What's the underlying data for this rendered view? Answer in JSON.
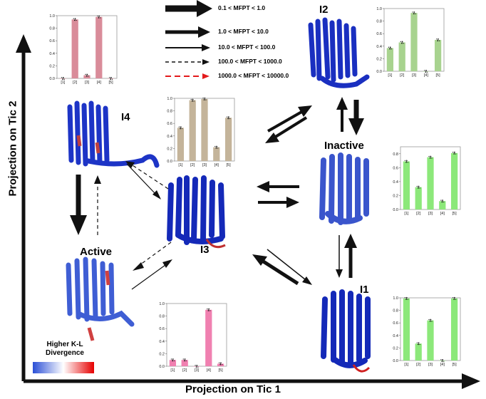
{
  "axes": {
    "x_label": "Projection on Tic 1",
    "y_label": "Projection on Tic 2"
  },
  "states": {
    "i2": "I2",
    "i4": "I4",
    "inactive": "Inactive",
    "i3": "I3",
    "active": "Active",
    "i1": "I1"
  },
  "legend": [
    {
      "label": "0.1 < MFPT < 1.0",
      "style": "thickest",
      "color": "#000000"
    },
    {
      "label": "1.0 < MFPT < 10.0",
      "style": "thick",
      "color": "#000000"
    },
    {
      "label": "10.0 < MFPT < 100.0",
      "style": "thin",
      "color": "#000000"
    },
    {
      "label": "100.0 < MFPT < 1000.0",
      "style": "dashed",
      "color": "#000000"
    },
    {
      "label": "1000.0 < MFPT < 10000.0",
      "style": "dashed",
      "color": "#e31a1c"
    }
  ],
  "kl_legend": {
    "line1": "Higher K-L",
    "line2": "Divergence",
    "gradient": [
      "#2b4fd6",
      "#ffffff",
      "#e60000"
    ]
  },
  "chart_data": [
    {
      "id": "I4",
      "type": "bar",
      "categories": [
        "[1]",
        "[2]",
        "[3]",
        "[4]",
        "[5]"
      ],
      "values": [
        0.0,
        0.94,
        0.05,
        0.98,
        0.0
      ],
      "ylim": [
        0,
        1.0
      ],
      "yticks": [
        "0.0",
        "0.2",
        "0.4",
        "0.6",
        "0.8",
        "1.0"
      ],
      "color": "#d98c9a"
    },
    {
      "id": "I3",
      "type": "bar",
      "categories": [
        "[1]",
        "[2]",
        "[3]",
        "[4]",
        "[5]"
      ],
      "values": [
        0.53,
        0.97,
        0.99,
        0.22,
        0.69
      ],
      "ylim": [
        0,
        1.0
      ],
      "yticks": [
        "0.0",
        "0.2",
        "0.4",
        "0.6",
        "0.8",
        "1.0"
      ],
      "color": "#c4b49a"
    },
    {
      "id": "I2",
      "type": "bar",
      "categories": [
        "[1]",
        "[2]",
        "[3]",
        "[4]",
        "[5]"
      ],
      "values": [
        0.37,
        0.46,
        0.93,
        0.0,
        0.5
      ],
      "ylim": [
        0,
        1.0
      ],
      "yticks": [
        "0.0",
        "0.2",
        "0.4",
        "0.6",
        "0.8",
        "1.0"
      ],
      "color": "#a8d38f"
    },
    {
      "id": "Inactive",
      "type": "bar",
      "categories": [
        "[1]",
        "[2]",
        "[3]",
        "[4]",
        "[5]"
      ],
      "values": [
        0.69,
        0.32,
        0.75,
        0.12,
        0.81
      ],
      "ylim": [
        0,
        0.9
      ],
      "yticks": [
        "0.0",
        "0.2",
        "0.4",
        "0.6",
        "0.8"
      ],
      "color": "#8ce87a"
    },
    {
      "id": "I1",
      "type": "bar",
      "categories": [
        "[1]",
        "[2]",
        "[3]",
        "[4]",
        "[5]"
      ],
      "values": [
        0.99,
        0.27,
        0.64,
        0.0,
        0.99
      ],
      "ylim": [
        0,
        1.0
      ],
      "yticks": [
        "0.0",
        "0.2",
        "0.4",
        "0.6",
        "0.8",
        "1.0"
      ],
      "color": "#8ce87a"
    },
    {
      "id": "Active",
      "type": "bar",
      "categories": [
        "[1]",
        "[2]",
        "[3]",
        "[4]",
        "[5]"
      ],
      "values": [
        0.1,
        0.1,
        0.0,
        0.9,
        0.04
      ],
      "ylim": [
        0,
        1.0
      ],
      "yticks": [
        "0.0",
        "0.2",
        "0.4",
        "0.6",
        "0.8",
        "1.0"
      ],
      "color": "#f080b0"
    }
  ]
}
